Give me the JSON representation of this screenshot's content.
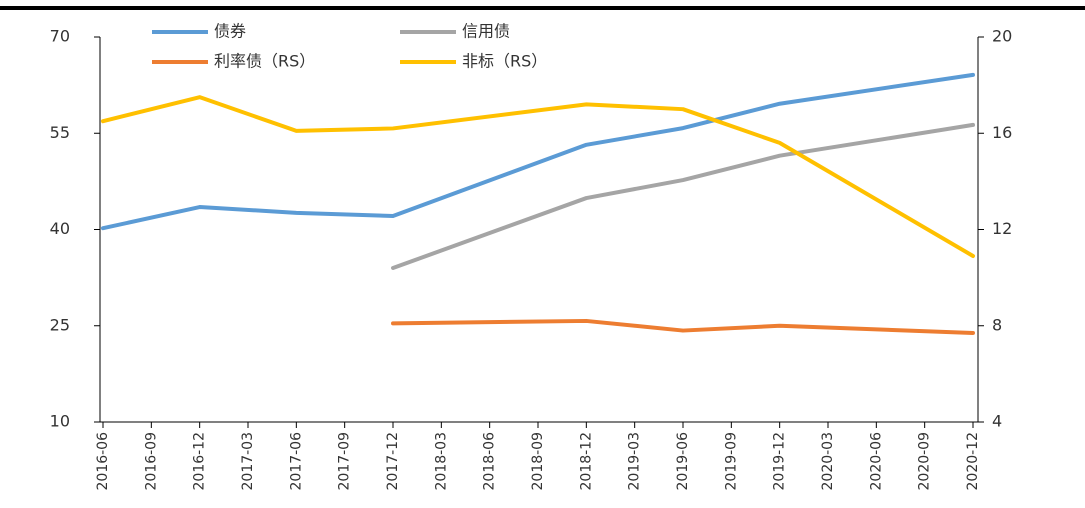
{
  "chart_data": {
    "type": "line",
    "categories": [
      "2016-06",
      "2016-09",
      "2016-12",
      "2017-03",
      "2017-06",
      "2017-09",
      "2017-12",
      "2018-03",
      "2018-06",
      "2018-09",
      "2018-12",
      "2019-03",
      "2019-06",
      "2019-09",
      "2019-12",
      "2020-03",
      "2020-06",
      "2020-09",
      "2020-12"
    ],
    "ylim": [
      10,
      70
    ],
    "yticks": [
      10,
      25,
      40,
      55,
      70
    ],
    "y2lim": [
      4,
      20
    ],
    "y2ticks": [
      4,
      8,
      12,
      16,
      20
    ],
    "series": [
      {
        "name": "债券",
        "color": "#5b9bd5",
        "x": [
          "2016-06",
          "2016-12",
          "2017-06",
          "2017-12",
          "2018-12",
          "2019-06",
          "2019-12",
          "2020-12"
        ],
        "values": [
          40.2,
          43.5,
          42.6,
          42.1,
          53.2,
          55.8,
          59.6,
          64.1
        ]
      },
      {
        "name": "信用债",
        "color": "#a5a5a5",
        "x": [
          "2017-12",
          "2018-12",
          "2019-06",
          "2019-12",
          "2020-12"
        ],
        "values": [
          34.0,
          44.9,
          47.7,
          51.5,
          56.3
        ]
      },
      {
        "name": "利率债（RS）",
        "color": "#ed7d31",
        "axis": "y2",
        "x": [
          "2017-12",
          "2018-12",
          "2019-06",
          "2019-12",
          "2020-12"
        ],
        "values": [
          8.1,
          8.2,
          7.8,
          8.0,
          7.7
        ]
      },
      {
        "name": "非标（RS）",
        "color": "#ffc000",
        "axis": "y2",
        "x": [
          "2016-06",
          "2016-12",
          "2017-06",
          "2017-12",
          "2018-12",
          "2019-06",
          "2019-12",
          "2020-12"
        ],
        "values": [
          16.5,
          17.5,
          16.1,
          16.2,
          17.2,
          17.0,
          15.6,
          10.9
        ]
      }
    ]
  }
}
